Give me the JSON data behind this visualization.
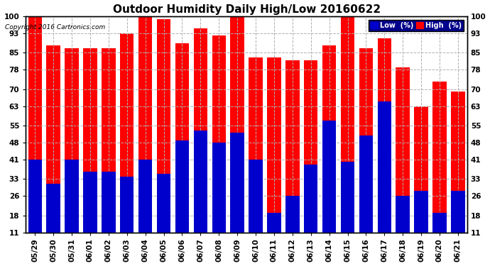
{
  "title": "Outdoor Humidity Daily High/Low 20160622",
  "copyright": "Copyright 2016 Cartronics.com",
  "dates": [
    "05/29",
    "05/30",
    "05/31",
    "06/01",
    "06/02",
    "06/03",
    "06/04",
    "06/05",
    "06/06",
    "06/07",
    "06/08",
    "06/09",
    "06/10",
    "06/11",
    "06/12",
    "06/13",
    "06/14",
    "06/15",
    "06/16",
    "06/17",
    "06/18",
    "06/19",
    "06/20",
    "06/21"
  ],
  "high": [
    100,
    88,
    87,
    87,
    87,
    93,
    100,
    99,
    89,
    95,
    92,
    100,
    83,
    83,
    82,
    82,
    88,
    100,
    87,
    91,
    79,
    63,
    73,
    69
  ],
  "low": [
    41,
    31,
    41,
    36,
    36,
    34,
    41,
    35,
    49,
    53,
    48,
    52,
    41,
    19,
    26,
    39,
    57,
    40,
    51,
    65,
    26,
    28,
    19,
    28
  ],
  "high_color": "#ff0000",
  "low_color": "#0000cc",
  "bg_color": "#ffffff",
  "grid_color": "#b0b0b0",
  "ybase": 11,
  "ylim_min": 11,
  "ylim_max": 100,
  "yticks": [
    11,
    18,
    26,
    33,
    41,
    48,
    55,
    63,
    70,
    78,
    85,
    93,
    100
  ],
  "title_fontsize": 11,
  "tick_fontsize": 7.5,
  "legend_low_label": "Low  (%)",
  "legend_high_label": "High  (%)"
}
